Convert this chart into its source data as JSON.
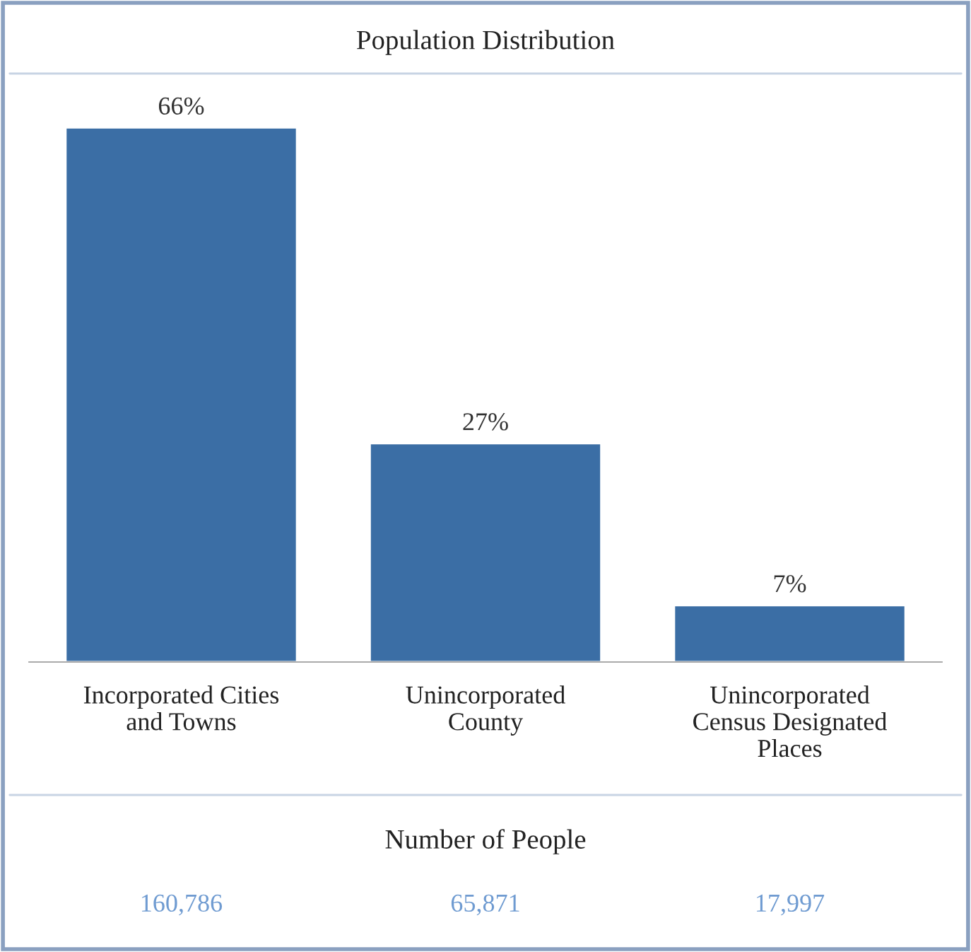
{
  "chart_data": {
    "type": "bar",
    "title": "Population Distribution",
    "categories": [
      "Incorporated Cities\nand Towns",
      "Unincorporated\nCounty",
      "Unincorporated\nCensus Designated\nPlaces"
    ],
    "values": [
      66,
      27,
      7
    ],
    "color": "#3b6ea5",
    "value_labels": [
      "66%",
      "27%",
      "7%"
    ],
    "annotations": [
      "Number of People",
      "160,786",
      "65,871",
      "17,997"
    ],
    "grid": false,
    "legend": false
  }
}
